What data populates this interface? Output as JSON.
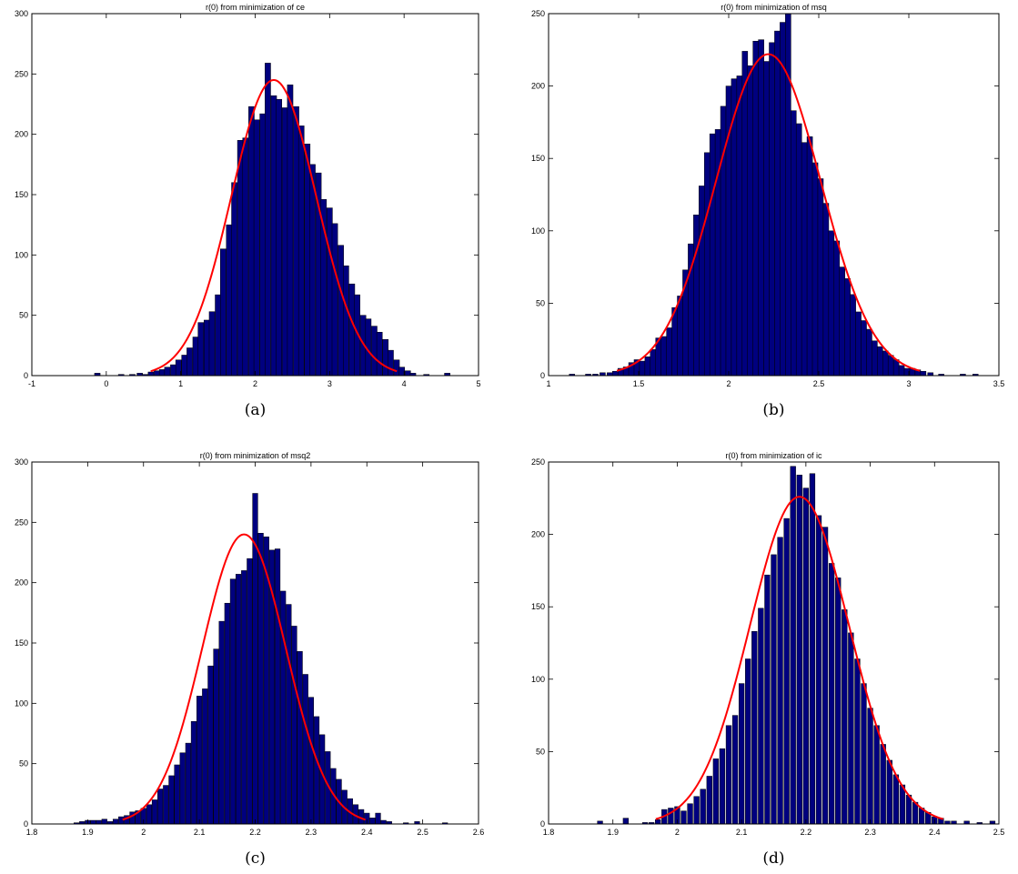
{
  "chart_data": [
    {
      "type": "bar",
      "title": "r(0) from minimization of ce",
      "caption": "(a)",
      "xlim": [
        -1,
        5
      ],
      "ylim": [
        0,
        300
      ],
      "xticks": [
        -1,
        0,
        1,
        2,
        3,
        4,
        5
      ],
      "yticks": [
        0,
        50,
        100,
        150,
        200,
        250,
        300
      ],
      "bin_width": 0.075,
      "bins": [
        [
          -0.12,
          2
        ],
        [
          0.2,
          1
        ],
        [
          0.35,
          1
        ],
        [
          0.45,
          2
        ],
        [
          0.52,
          1
        ],
        [
          0.6,
          3
        ],
        [
          0.68,
          4
        ],
        [
          0.75,
          5
        ],
        [
          0.82,
          7
        ],
        [
          0.9,
          9
        ],
        [
          0.97,
          13
        ],
        [
          1.05,
          17
        ],
        [
          1.12,
          23
        ],
        [
          1.2,
          32
        ],
        [
          1.27,
          44
        ],
        [
          1.35,
          46
        ],
        [
          1.42,
          53
        ],
        [
          1.5,
          67
        ],
        [
          1.57,
          105
        ],
        [
          1.65,
          125
        ],
        [
          1.72,
          160
        ],
        [
          1.8,
          195
        ],
        [
          1.87,
          197
        ],
        [
          1.95,
          223
        ],
        [
          2.02,
          212
        ],
        [
          2.1,
          217
        ],
        [
          2.17,
          259
        ],
        [
          2.25,
          232
        ],
        [
          2.32,
          229
        ],
        [
          2.4,
          222
        ],
        [
          2.47,
          241
        ],
        [
          2.55,
          223
        ],
        [
          2.62,
          207
        ],
        [
          2.7,
          192
        ],
        [
          2.77,
          175
        ],
        [
          2.85,
          168
        ],
        [
          2.92,
          146
        ],
        [
          3.0,
          139
        ],
        [
          3.07,
          126
        ],
        [
          3.15,
          108
        ],
        [
          3.22,
          91
        ],
        [
          3.3,
          76
        ],
        [
          3.37,
          67
        ],
        [
          3.45,
          50
        ],
        [
          3.52,
          47
        ],
        [
          3.6,
          41
        ],
        [
          3.67,
          36
        ],
        [
          3.75,
          30
        ],
        [
          3.82,
          21
        ],
        [
          3.9,
          13
        ],
        [
          3.97,
          7
        ],
        [
          4.05,
          4
        ],
        [
          4.12,
          2
        ],
        [
          4.3,
          1
        ],
        [
          4.58,
          2
        ]
      ],
      "fit": {
        "type": "normal",
        "peak": 245,
        "mean": 2.25,
        "sd": 0.57
      }
    },
    {
      "type": "bar",
      "title": "r(0) from minimization of msq",
      "caption": "(b)",
      "xlim": [
        1,
        3.5
      ],
      "ylim": [
        0,
        250
      ],
      "xticks": [
        1,
        1.5,
        2,
        2.5,
        3,
        3.5
      ],
      "yticks": [
        0,
        50,
        100,
        150,
        200,
        250
      ],
      "bin_width": 0.0305,
      "bins": [
        [
          1.13,
          1
        ],
        [
          1.22,
          1
        ],
        [
          1.26,
          1
        ],
        [
          1.3,
          2
        ],
        [
          1.34,
          2
        ],
        [
          1.37,
          3
        ],
        [
          1.4,
          5
        ],
        [
          1.43,
          6
        ],
        [
          1.46,
          9
        ],
        [
          1.49,
          11
        ],
        [
          1.52,
          10
        ],
        [
          1.55,
          13
        ],
        [
          1.58,
          18
        ],
        [
          1.61,
          26
        ],
        [
          1.64,
          27
        ],
        [
          1.67,
          33
        ],
        [
          1.7,
          47
        ],
        [
          1.73,
          55
        ],
        [
          1.76,
          73
        ],
        [
          1.79,
          91
        ],
        [
          1.82,
          111
        ],
        [
          1.85,
          131
        ],
        [
          1.88,
          154
        ],
        [
          1.91,
          167
        ],
        [
          1.94,
          170
        ],
        [
          1.97,
          186
        ],
        [
          2.0,
          200
        ],
        [
          2.03,
          205
        ],
        [
          2.06,
          207
        ],
        [
          2.09,
          224
        ],
        [
          2.12,
          214
        ],
        [
          2.15,
          231
        ],
        [
          2.18,
          232
        ],
        [
          2.21,
          217
        ],
        [
          2.24,
          230
        ],
        [
          2.27,
          238
        ],
        [
          2.3,
          244
        ],
        [
          2.33,
          250
        ],
        [
          2.36,
          183
        ],
        [
          2.39,
          174
        ],
        [
          2.42,
          161
        ],
        [
          2.45,
          165
        ],
        [
          2.48,
          147
        ],
        [
          2.51,
          136
        ],
        [
          2.54,
          119
        ],
        [
          2.57,
          100
        ],
        [
          2.6,
          93
        ],
        [
          2.63,
          75
        ],
        [
          2.66,
          67
        ],
        [
          2.69,
          56
        ],
        [
          2.72,
          44
        ],
        [
          2.75,
          38
        ],
        [
          2.78,
          32
        ],
        [
          2.81,
          24
        ],
        [
          2.84,
          20
        ],
        [
          2.87,
          17
        ],
        [
          2.9,
          14
        ],
        [
          2.93,
          11
        ],
        [
          2.96,
          7
        ],
        [
          2.99,
          5
        ],
        [
          3.02,
          5
        ],
        [
          3.05,
          4
        ],
        [
          3.08,
          3
        ],
        [
          3.12,
          2
        ],
        [
          3.18,
          1
        ],
        [
          3.3,
          1
        ],
        [
          3.37,
          1
        ]
      ],
      "fit": {
        "type": "normal",
        "peak": 222,
        "mean": 2.22,
        "sd": 0.29
      }
    },
    {
      "type": "bar",
      "title": "r(0) from minimization of msq2",
      "caption": "(c)",
      "xlim": [
        1.8,
        2.6
      ],
      "ylim": [
        0,
        300
      ],
      "xticks": [
        1.8,
        1.9,
        2,
        2.1,
        2.2,
        2.3,
        2.4,
        2.5,
        2.6
      ],
      "yticks": [
        0,
        50,
        100,
        150,
        200,
        250,
        300
      ],
      "bin_width": 0.0093,
      "bins": [
        [
          1.88,
          1
        ],
        [
          1.89,
          2
        ],
        [
          1.9,
          3
        ],
        [
          1.91,
          3
        ],
        [
          1.92,
          3
        ],
        [
          1.93,
          4
        ],
        [
          1.94,
          2
        ],
        [
          1.95,
          4
        ],
        [
          1.96,
          6
        ],
        [
          1.97,
          7
        ],
        [
          1.98,
          10
        ],
        [
          1.99,
          11
        ],
        [
          2.0,
          13
        ],
        [
          2.01,
          16
        ],
        [
          2.02,
          20
        ],
        [
          2.03,
          29
        ],
        [
          2.04,
          32
        ],
        [
          2.05,
          40
        ],
        [
          2.06,
          49
        ],
        [
          2.07,
          59
        ],
        [
          2.08,
          67
        ],
        [
          2.09,
          85
        ],
        [
          2.1,
          106
        ],
        [
          2.11,
          112
        ],
        [
          2.12,
          131
        ],
        [
          2.13,
          145
        ],
        [
          2.14,
          168
        ],
        [
          2.15,
          183
        ],
        [
          2.16,
          203
        ],
        [
          2.17,
          207
        ],
        [
          2.18,
          210
        ],
        [
          2.19,
          220
        ],
        [
          2.2,
          274
        ],
        [
          2.21,
          241
        ],
        [
          2.22,
          238
        ],
        [
          2.23,
          227
        ],
        [
          2.24,
          228
        ],
        [
          2.25,
          193
        ],
        [
          2.26,
          182
        ],
        [
          2.27,
          164
        ],
        [
          2.28,
          143
        ],
        [
          2.29,
          124
        ],
        [
          2.3,
          105
        ],
        [
          2.31,
          89
        ],
        [
          2.32,
          74
        ],
        [
          2.33,
          60
        ],
        [
          2.34,
          46
        ],
        [
          2.35,
          37
        ],
        [
          2.36,
          28
        ],
        [
          2.37,
          21
        ],
        [
          2.38,
          16
        ],
        [
          2.39,
          12
        ],
        [
          2.4,
          9
        ],
        [
          2.41,
          5
        ],
        [
          2.42,
          9
        ],
        [
          2.43,
          3
        ],
        [
          2.44,
          2
        ],
        [
          2.47,
          1
        ],
        [
          2.49,
          2
        ],
        [
          2.54,
          1
        ]
      ],
      "fit": {
        "type": "normal",
        "peak": 240,
        "mean": 2.18,
        "sd": 0.075
      }
    },
    {
      "type": "bar",
      "title": "r(0) from minimization of ic",
      "caption": "(d)",
      "xlim": [
        1.8,
        2.5
      ],
      "ylim": [
        0,
        250
      ],
      "xticks": [
        1.8,
        1.9,
        2,
        2.1,
        2.2,
        2.3,
        2.4,
        2.5
      ],
      "yticks": [
        0,
        50,
        100,
        150,
        200,
        250
      ],
      "bin_width": 0.0082,
      "bins": [
        [
          1.88,
          2
        ],
        [
          1.92,
          4
        ],
        [
          1.95,
          1
        ],
        [
          1.96,
          1
        ],
        [
          1.97,
          3
        ],
        [
          1.98,
          10
        ],
        [
          1.99,
          11
        ],
        [
          2.0,
          12
        ],
        [
          2.01,
          9
        ],
        [
          2.02,
          14
        ],
        [
          2.03,
          19
        ],
        [
          2.04,
          24
        ],
        [
          2.05,
          33
        ],
        [
          2.06,
          45
        ],
        [
          2.07,
          52
        ],
        [
          2.08,
          68
        ],
        [
          2.09,
          75
        ],
        [
          2.1,
          97
        ],
        [
          2.11,
          114
        ],
        [
          2.12,
          133
        ],
        [
          2.13,
          149
        ],
        [
          2.14,
          172
        ],
        [
          2.15,
          186
        ],
        [
          2.16,
          198
        ],
        [
          2.17,
          211
        ],
        [
          2.18,
          247
        ],
        [
          2.19,
          241
        ],
        [
          2.2,
          232
        ],
        [
          2.21,
          242
        ],
        [
          2.22,
          213
        ],
        [
          2.23,
          205
        ],
        [
          2.24,
          180
        ],
        [
          2.25,
          170
        ],
        [
          2.26,
          148
        ],
        [
          2.27,
          132
        ],
        [
          2.28,
          114
        ],
        [
          2.29,
          97
        ],
        [
          2.3,
          80
        ],
        [
          2.31,
          68
        ],
        [
          2.32,
          55
        ],
        [
          2.33,
          44
        ],
        [
          2.34,
          34
        ],
        [
          2.35,
          27
        ],
        [
          2.36,
          20
        ],
        [
          2.37,
          15
        ],
        [
          2.38,
          11
        ],
        [
          2.39,
          8
        ],
        [
          2.4,
          5
        ],
        [
          2.41,
          4
        ],
        [
          2.42,
          2
        ],
        [
          2.43,
          2
        ],
        [
          2.45,
          2
        ],
        [
          2.47,
          1
        ],
        [
          2.49,
          2
        ]
      ],
      "fit": {
        "type": "normal",
        "peak": 226,
        "mean": 2.19,
        "sd": 0.077
      }
    }
  ]
}
